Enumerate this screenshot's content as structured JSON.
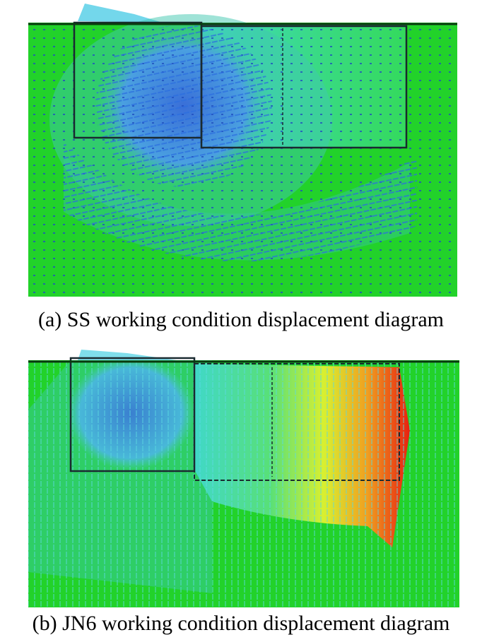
{
  "figure": {
    "panels": [
      {
        "caption": "(a) SS working condition displacement diagram"
      },
      {
        "caption": "(b) JN6 working condition displacement diagram"
      }
    ]
  }
}
